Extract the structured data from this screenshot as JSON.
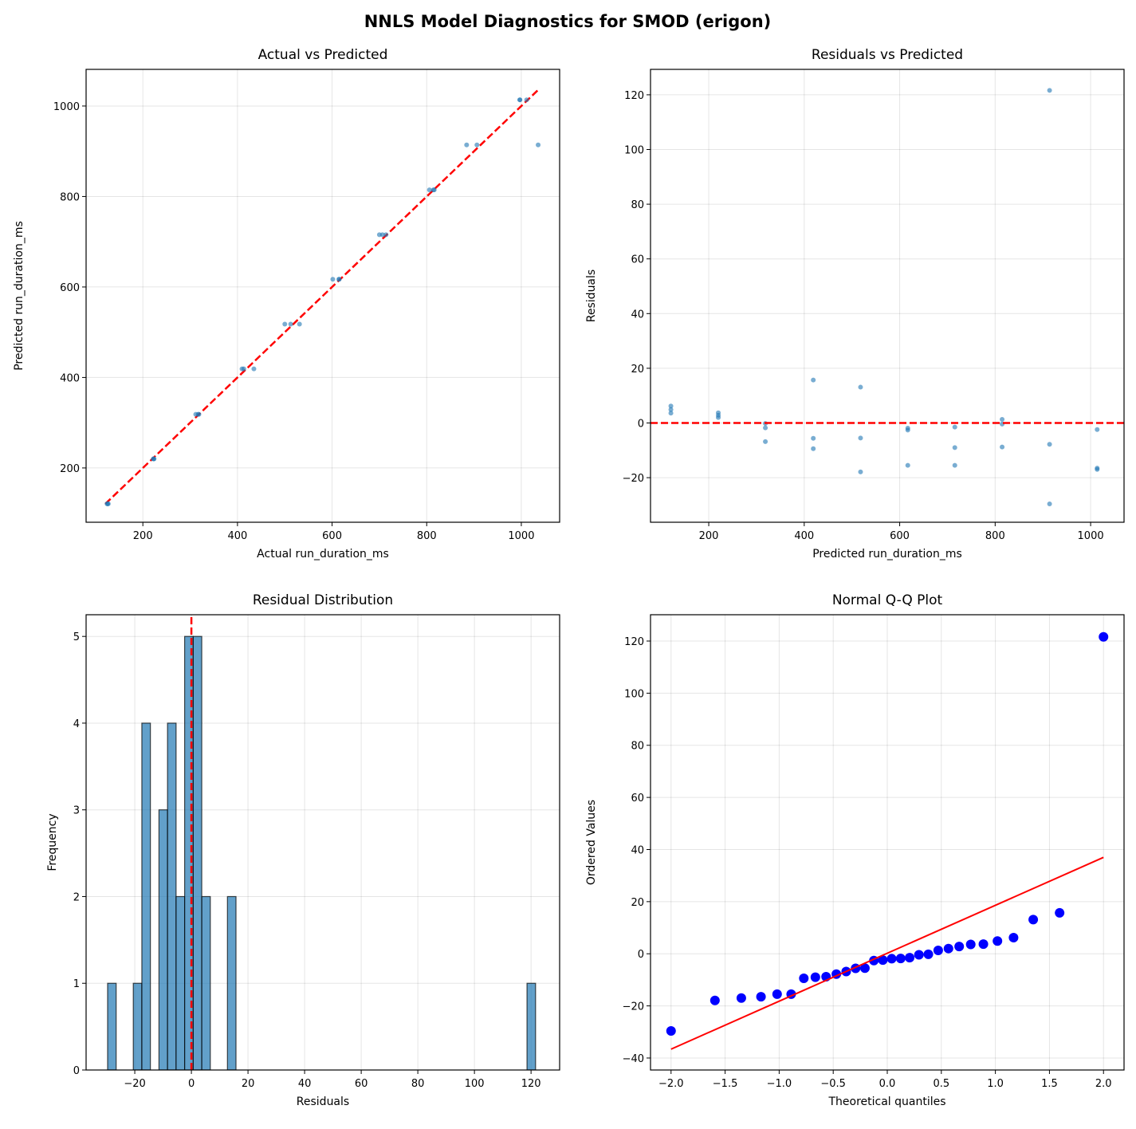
{
  "suptitle": "NNLS Model Diagnostics for SMOD (erigon)",
  "colors": {
    "points": "#1f77b4",
    "reference_line": "#ff0000",
    "qq_points": "#0000ff"
  },
  "chart_data": [
    {
      "type": "scatter",
      "title": "Actual vs Predicted",
      "xlabel": "Actual run_duration_ms",
      "ylabel": "Predicted run_duration_ms",
      "xlim": [
        80,
        1081
      ],
      "ylim": [
        80,
        1081
      ],
      "xticks": [
        200,
        400,
        600,
        800,
        1000
      ],
      "xtick_labels": [
        "200",
        "400",
        "600",
        "800",
        "1000"
      ],
      "yticks": [
        200,
        400,
        600,
        800,
        1000
      ],
      "ytick_labels": [
        "200",
        "400",
        "600",
        "800",
        "1000"
      ],
      "grid": true,
      "reference_line": {
        "style": "dashed",
        "color": "#ff0000",
        "from": [
          120.7,
          120.7
        ],
        "to": [
          1035.6,
          1035.6
        ]
      },
      "actual": [
        126.9,
        125.6,
        124.3,
        223.7,
        222.8,
        222.0,
        318.4,
        316.8,
        311.8,
        434.7,
        413.4,
        409.6,
        531.1,
        512.5,
        500.1,
        615.1,
        614.4,
        601.5,
        714.0,
        706.5,
        700.0,
        815.9,
        814.2,
        805.8,
        1035.6,
        906.2,
        884.4,
        1011.3,
        997.2,
        996.7
      ],
      "predicted": [
        120.7,
        120.7,
        120.7,
        220,
        220,
        220,
        318.6,
        318.6,
        318.6,
        419,
        419,
        419,
        518,
        518,
        518,
        617,
        617,
        617,
        715.5,
        715.5,
        715.5,
        814.6,
        814.6,
        814.6,
        914,
        914,
        914,
        1013.7,
        1013.7,
        1013.7
      ]
    },
    {
      "type": "scatter",
      "title": "Residuals vs Predicted",
      "xlabel": "Predicted run_duration_ms",
      "ylabel": "Residuals",
      "xlim": [
        78,
        1070
      ],
      "ylim": [
        -36.3,
        129.3
      ],
      "xticks": [
        200,
        400,
        600,
        800,
        1000
      ],
      "xtick_labels": [
        "200",
        "400",
        "600",
        "800",
        "1000"
      ],
      "yticks": [
        -20,
        0,
        20,
        40,
        60,
        80,
        100,
        120
      ],
      "ytick_labels": [
        "−20",
        "0",
        "20",
        "40",
        "60",
        "80",
        "100",
        "120"
      ],
      "grid": true,
      "reference_line": {
        "style": "dashed",
        "color": "#ff0000",
        "y": 0
      },
      "predicted": [
        120.7,
        120.7,
        120.7,
        220,
        220,
        220,
        318.6,
        318.6,
        318.6,
        419,
        419,
        419,
        518,
        518,
        518,
        617,
        617,
        617,
        715.5,
        715.5,
        715.5,
        814.6,
        814.6,
        814.6,
        914,
        914,
        914,
        1013.7,
        1013.7,
        1013.7
      ],
      "residuals": [
        6.2,
        4.9,
        3.6,
        3.7,
        2.8,
        2.0,
        -0.2,
        -1.8,
        -6.8,
        15.7,
        -5.6,
        -9.4,
        13.1,
        -5.5,
        -17.9,
        -1.9,
        -2.6,
        -15.5,
        -1.5,
        -9.0,
        -15.5,
        1.3,
        -0.4,
        -8.8,
        121.6,
        -7.8,
        -29.6,
        -2.4,
        -16.5,
        -17.0
      ]
    },
    {
      "type": "bar",
      "title": "Residual Distribution",
      "xlabel": "Residuals",
      "ylabel": "Frequency",
      "xlim": [
        -37.2,
        130.1
      ],
      "ylim": [
        0,
        5.25
      ],
      "xticks": [
        -20,
        0,
        20,
        40,
        60,
        80,
        100,
        120
      ],
      "xtick_labels": [
        "−20",
        "0",
        "20",
        "40",
        "60",
        "80",
        "100",
        "120"
      ],
      "yticks": [
        0,
        1,
        2,
        3,
        4,
        5
      ],
      "ytick_labels": [
        "0",
        "1",
        "2",
        "3",
        "4",
        "5"
      ],
      "grid": true,
      "bin_range": [
        -29.6,
        121.6
      ],
      "counts": [
        1,
        0,
        0,
        1,
        4,
        0,
        3,
        4,
        2,
        5,
        5,
        2,
        0,
        0,
        2,
        0,
        0,
        0,
        0,
        0,
        0,
        0,
        0,
        0,
        0,
        0,
        0,
        0,
        0,
        0,
        0,
        0,
        0,
        0,
        0,
        0,
        0,
        0,
        0,
        0,
        0,
        0,
        0,
        0,
        0,
        0,
        0,
        0,
        0,
        1
      ],
      "reference_line": {
        "style": "dashed",
        "color": "#ff0000",
        "x": 0
      }
    },
    {
      "type": "scatter",
      "title": "Normal Q-Q Plot",
      "xlabel": "Theoretical quantiles",
      "ylabel": "Ordered Values",
      "xlim": [
        -2.19,
        2.19
      ],
      "ylim": [
        -44.6,
        130.1
      ],
      "xticks": [
        -2,
        -1.5,
        -1,
        -0.5,
        0,
        0.5,
        1,
        1.5,
        2
      ],
      "xtick_labels": [
        "−2.0",
        "−1.5",
        "−1.0",
        "−0.5",
        "0.0",
        "0.5",
        "1.0",
        "1.5",
        "2.0"
      ],
      "yticks": [
        -40,
        -20,
        0,
        20,
        40,
        60,
        80,
        100,
        120
      ],
      "ytick_labels": [
        "−40",
        "−20",
        "0",
        "20",
        "40",
        "60",
        "80",
        "100",
        "120"
      ],
      "grid": true,
      "theoretical_quantiles": [
        -2.0,
        -1.594,
        -1.35,
        -1.168,
        -1.019,
        -0.889,
        -0.772,
        -0.665,
        -0.566,
        -0.471,
        -0.38,
        -0.293,
        -0.207,
        -0.124,
        -0.041,
        0.041,
        0.124,
        0.207,
        0.293,
        0.38,
        0.471,
        0.566,
        0.665,
        0.772,
        0.889,
        1.019,
        1.168,
        1.35,
        1.594,
        2.0
      ],
      "ordered_values": [
        -29.6,
        -17.9,
        -17.0,
        -16.5,
        -15.5,
        -15.5,
        -9.4,
        -9.0,
        -8.8,
        -7.8,
        -6.8,
        -5.6,
        -5.5,
        -2.6,
        -2.4,
        -1.9,
        -1.8,
        -1.5,
        -0.4,
        -0.2,
        1.3,
        2.0,
        2.8,
        3.6,
        3.7,
        4.9,
        6.2,
        13.1,
        15.7,
        121.6
      ],
      "fit_line": {
        "slope": 18.4,
        "intercept": 0.2,
        "color": "#ff0000"
      }
    }
  ]
}
